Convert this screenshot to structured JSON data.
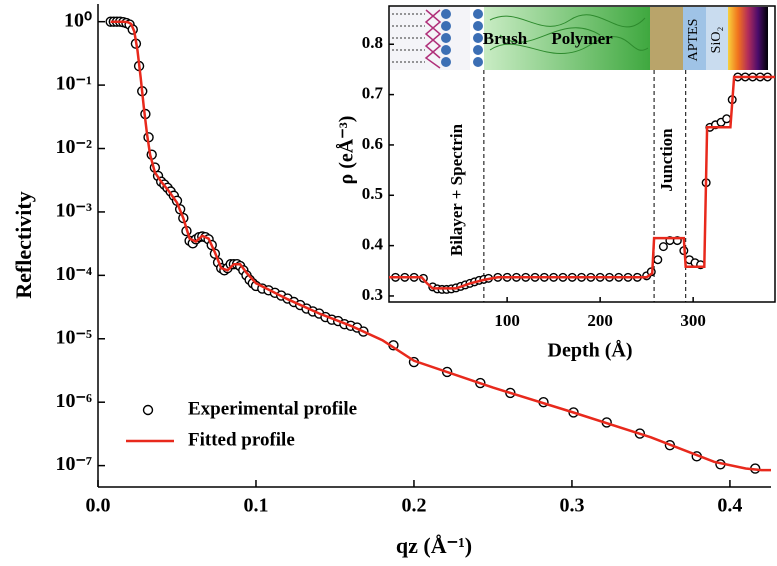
{
  "chart_data": [
    {
      "type": "line",
      "yscale": "log",
      "legend": "lower left",
      "x_label": "qz (Å⁻¹)",
      "y_label": "Reflectivity",
      "xlim": [
        0,
        0.426
      ],
      "xticks": [
        {
          "value": 0,
          "label": "0.0"
        },
        0.1,
        0.2,
        0.3,
        0.4
      ],
      "ylim": [
        4.6e-08,
        1.9
      ],
      "yticks": [
        {
          "value": 1,
          "label": "10⁰"
        },
        {
          "value": 0.1,
          "label": "10⁻¹"
        },
        {
          "value": 0.01,
          "label": "10⁻²"
        },
        {
          "value": 0.001,
          "label": "10⁻³"
        },
        {
          "value": 0.0001,
          "label": "10⁻⁴"
        },
        {
          "value": 1e-05,
          "label": "10⁻⁵"
        },
        {
          "value": 1e-06,
          "label": "10⁻⁶"
        },
        {
          "value": 1e-07,
          "label": "10⁻⁷"
        }
      ],
      "series": [
        {
          "name": "Experimental profile",
          "type": "scatter",
          "color": "#000000",
          "x": [
            0.008,
            0.01,
            0.012,
            0.014,
            0.016,
            0.018,
            0.02,
            0.022,
            0.024,
            0.026,
            0.028,
            0.03,
            0.032,
            0.034,
            0.036,
            0.038,
            0.04,
            0.042,
            0.044,
            0.046,
            0.048,
            0.05,
            0.052,
            0.054,
            0.056,
            0.058,
            0.06,
            0.062,
            0.064,
            0.066,
            0.068,
            0.07,
            0.072,
            0.074,
            0.076,
            0.078,
            0.08,
            0.082,
            0.084,
            0.086,
            0.088,
            0.09,
            0.092,
            0.094,
            0.096,
            0.098,
            0.1,
            0.104,
            0.108,
            0.112,
            0.116,
            0.12,
            0.124,
            0.128,
            0.132,
            0.136,
            0.14,
            0.144,
            0.148,
            0.152,
            0.156,
            0.16,
            0.164,
            0.168,
            0.187,
            0.2,
            0.221,
            0.242,
            0.261,
            0.282,
            0.301,
            0.322,
            0.343,
            0.362,
            0.379,
            0.394,
            0.416
          ],
          "values": [
            1,
            1,
            1,
            1,
            0.98,
            0.95,
            0.9,
            0.75,
            0.45,
            0.2,
            0.08,
            0.035,
            0.015,
            0.008,
            0.005,
            0.0037,
            0.003,
            0.0027,
            0.0024,
            0.0021,
            0.0018,
            0.0015,
            0.0011,
            0.0008,
            0.0005,
            0.00035,
            0.00032,
            0.00037,
            0.0004,
            0.00041,
            0.0004,
            0.00037,
            0.0003,
            0.00022,
            0.00016,
            0.00013,
            0.00012,
            0.00013,
            0.00015,
            0.00015,
            0.00015,
            0.00014,
            0.00012,
            0.0001,
            8.5e-05,
            7.5e-05,
            6.8e-05,
            6.2e-05,
            5.8e-05,
            5.3e-05,
            4.8e-05,
            4.3e-05,
            3.8e-05,
            3.4e-05,
            3e-05,
            2.7e-05,
            2.5e-05,
            2.2e-05,
            2e-05,
            1.9e-05,
            1.7e-05,
            1.6e-05,
            1.5e-05,
            1.3e-05,
            7.9e-06,
            4.3e-06,
            3e-06,
            2e-06,
            1.4e-06,
            1e-06,
            6.9e-07,
            4.8e-07,
            3.2e-07,
            2.1e-07,
            1.4e-07,
            1.05e-07,
            9e-08
          ]
        },
        {
          "name": "Fitted profile",
          "type": "line",
          "color": "#e8291c",
          "x": [
            0.008,
            0.012,
            0.016,
            0.019,
            0.021,
            0.023,
            0.025,
            0.027,
            0.029,
            0.031,
            0.033,
            0.036,
            0.04,
            0.045,
            0.05,
            0.054,
            0.058,
            0.062,
            0.066,
            0.07,
            0.074,
            0.078,
            0.082,
            0.086,
            0.09,
            0.094,
            0.1,
            0.12,
            0.14,
            0.16,
            0.18,
            0.2,
            0.25,
            0.3,
            0.35,
            0.39,
            0.41,
            0.42,
            0.426
          ],
          "values": [
            1,
            1,
            1,
            0.98,
            0.92,
            0.7,
            0.35,
            0.13,
            0.045,
            0.017,
            0.008,
            0.0042,
            0.003,
            0.0021,
            0.0014,
            0.0008,
            0.00038,
            0.00034,
            0.00042,
            0.00038,
            0.00023,
            0.00013,
            0.00012,
            0.00015,
            0.00015,
            0.00011,
            7.5e-05,
            4.2e-05,
            2.5e-05,
            1.6e-05,
            9.5e-06,
            4.5e-06,
            1.7e-06,
            7e-07,
            2.8e-07,
            1.15e-07,
            9e-08,
            8.5e-08,
            8.5e-08
          ]
        }
      ]
    },
    {
      "type": "line",
      "x_label": "Depth (Å)",
      "y_label": "ρ (eÅ⁻³)",
      "annotations": [
        "Bilayer + Spectrin",
        "Brush",
        "Polymer",
        "Junction",
        "APTES",
        "SiO₂"
      ],
      "vlines": [
        75,
        258,
        292
      ],
      "xlim": [
        -27,
        388
      ],
      "xticks": [
        100,
        200,
        300
      ],
      "ylim": [
        0.288,
        0.876
      ],
      "yticks": [
        0.3,
        0.4,
        0.5,
        0.6,
        0.7,
        0.8
      ],
      "series": [
        {
          "type": "scatter",
          "color": "#000000",
          "x": [
            -20,
            -10,
            0,
            10,
            20,
            25,
            30,
            35,
            40,
            45,
            50,
            55,
            60,
            65,
            70,
            75,
            80,
            90,
            100,
            110,
            120,
            130,
            140,
            150,
            160,
            170,
            180,
            190,
            200,
            210,
            220,
            230,
            240,
            250,
            255,
            262,
            268,
            275,
            283,
            290,
            296,
            302,
            308,
            314,
            318,
            324,
            330,
            336,
            342,
            348,
            356,
            364,
            372,
            380
          ],
          "values": [
            0.337,
            0.337,
            0.337,
            0.335,
            0.318,
            0.314,
            0.313,
            0.313,
            0.314,
            0.316,
            0.319,
            0.322,
            0.325,
            0.328,
            0.331,
            0.333,
            0.335,
            0.337,
            0.337,
            0.337,
            0.337,
            0.337,
            0.337,
            0.337,
            0.337,
            0.337,
            0.337,
            0.337,
            0.337,
            0.337,
            0.337,
            0.337,
            0.337,
            0.34,
            0.348,
            0.372,
            0.398,
            0.41,
            0.41,
            0.39,
            0.372,
            0.366,
            0.362,
            0.525,
            0.635,
            0.64,
            0.645,
            0.652,
            0.69,
            0.735,
            0.735,
            0.735,
            0.735,
            0.735
          ]
        },
        {
          "type": "line",
          "color": "#e8291c",
          "x": [
            -27,
            8,
            14,
            20,
            45,
            60,
            75,
            90,
            250,
            256,
            258,
            290,
            292,
            312,
            315,
            340,
            344,
            388
          ],
          "values": [
            0.337,
            0.337,
            0.325,
            0.315,
            0.315,
            0.325,
            0.332,
            0.337,
            0.337,
            0.345,
            0.415,
            0.415,
            0.358,
            0.358,
            0.635,
            0.635,
            0.735,
            0.735
          ]
        }
      ]
    }
  ]
}
